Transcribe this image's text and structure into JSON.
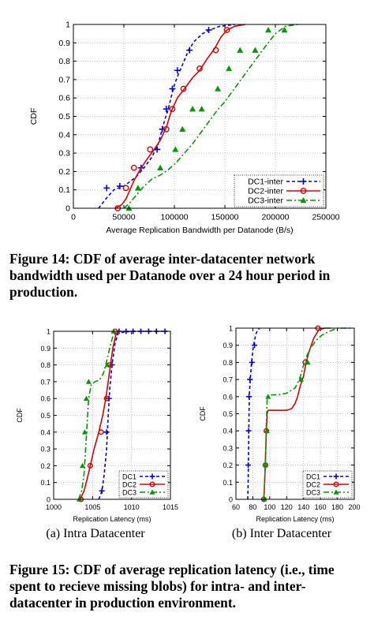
{
  "captions": {
    "fig14": "Figure 14: CDF of average inter-datacenter network bandwidth used per Datanode over a 24 hour period in production.",
    "fig15a": "(a) Intra Datacenter",
    "fig15b": "(b) Inter Datacenter",
    "fig15": "Figure 15: CDF of average replication latency (i.e., time spent to recieve missing blobs) for intra- and inter-datacenter in production environment."
  },
  "chart_data": [
    {
      "id": "fig14",
      "type": "line",
      "title": "",
      "xlabel": "Average Replication Bandwidth per Datanode (B/s)",
      "ylabel": "CDF",
      "xlim": [
        0,
        250000
      ],
      "ylim": [
        0,
        1
      ],
      "xticks": [
        0,
        50000,
        100000,
        150000,
        200000,
        250000
      ],
      "xtick_labels": [
        "0",
        "50000",
        "100000",
        "150000",
        "200000",
        "250000"
      ],
      "yticks": [
        0,
        0.1,
        0.2,
        0.3,
        0.4,
        0.5,
        0.6,
        0.7,
        0.8,
        0.9,
        1
      ],
      "ytick_labels": [
        "0",
        "0.1",
        "0.2",
        "0.3",
        "0.4",
        "0.5",
        "0.6",
        "0.7",
        "0.8",
        "0.9",
        "1"
      ],
      "grid": true,
      "legend": "bottom-right",
      "series": [
        {
          "name": "DC1-inter",
          "color": "#0000ee",
          "dash": "4,3",
          "marker": "plus",
          "x": [
            25000,
            32000,
            40000,
            50000,
            62000,
            70000,
            78000,
            84000,
            88000,
            91000,
            94000,
            97000,
            100000,
            104000,
            108000,
            114000,
            120000,
            128000,
            135000,
            145000,
            160000
          ],
          "y": [
            0,
            0.05,
            0.1,
            0.12,
            0.17,
            0.22,
            0.28,
            0.35,
            0.43,
            0.49,
            0.54,
            0.61,
            0.67,
            0.73,
            0.78,
            0.86,
            0.91,
            0.95,
            0.97,
            0.99,
            1
          ],
          "markers_x": [
            33000,
            46000,
            67000,
            83000,
            88000,
            92000,
            98000,
            103000,
            115000,
            134000
          ],
          "markers_y": [
            0.11,
            0.12,
            0.22,
            0.32,
            0.43,
            0.54,
            0.65,
            0.75,
            0.86,
            0.97
          ]
        },
        {
          "name": "DC2-inter",
          "color": "#dd0000",
          "dash": "",
          "marker": "circle",
          "x": [
            42000,
            48000,
            52000,
            56000,
            60000,
            66000,
            72000,
            80000,
            86000,
            92000,
            97000,
            103000,
            110000,
            118000,
            125000,
            132000,
            140000,
            146000,
            152000,
            160000,
            170000
          ],
          "y": [
            0,
            0.02,
            0.05,
            0.1,
            0.15,
            0.21,
            0.26,
            0.32,
            0.37,
            0.44,
            0.53,
            0.6,
            0.65,
            0.71,
            0.75,
            0.81,
            0.87,
            0.93,
            0.97,
            0.99,
            1
          ],
          "markers_x": [
            44000,
            52000,
            60000,
            76000,
            92000,
            98000,
            109000,
            125000,
            141000,
            152000
          ],
          "markers_y": [
            0,
            0.11,
            0.22,
            0.32,
            0.43,
            0.54,
            0.65,
            0.76,
            0.86,
            0.97
          ]
        },
        {
          "name": "DC3-inter",
          "color": "#009900",
          "dash": "7,3,2,3",
          "marker": "triangle",
          "x": [
            50000,
            56000,
            62000,
            70000,
            78000,
            86000,
            94000,
            102000,
            110000,
            118000,
            126000,
            134000,
            142000,
            150000,
            158000,
            166000,
            174000,
            182000,
            190000,
            200000,
            210000,
            222000
          ],
          "y": [
            0,
            0.03,
            0.07,
            0.12,
            0.16,
            0.18,
            0.21,
            0.25,
            0.3,
            0.35,
            0.41,
            0.47,
            0.53,
            0.58,
            0.64,
            0.7,
            0.76,
            0.82,
            0.88,
            0.95,
            0.99,
            1
          ],
          "markers_x": [
            55000,
            64000,
            86000,
            101000,
            108000,
            118000,
            127000,
            143000,
            154000,
            165000,
            180000,
            193000,
            209000
          ],
          "markers_y": [
            0,
            0.11,
            0.22,
            0.32,
            0.43,
            0.54,
            0.54,
            0.65,
            0.76,
            0.86,
            0.86,
            0.97,
            0.97
          ]
        }
      ]
    },
    {
      "id": "fig15a",
      "type": "line",
      "title": "",
      "xlabel": "Replication Latency (ms)",
      "ylabel": "CDF",
      "xlim": [
        1000,
        1015
      ],
      "ylim": [
        0,
        1
      ],
      "xticks": [
        1000,
        1005,
        1010,
        1015
      ],
      "xtick_labels": [
        "1000",
        "1005",
        "1010",
        "1015"
      ],
      "yticks": [
        0,
        0.1,
        0.2,
        0.3,
        0.4,
        0.5,
        0.6,
        0.7,
        0.8,
        0.9,
        1
      ],
      "ytick_labels": [
        "0",
        "0.1",
        "0.2",
        "0.3",
        "0.4",
        "0.5",
        "0.6",
        "0.7",
        "0.8",
        "0.9",
        "1"
      ],
      "grid": true,
      "legend": "bottom-right",
      "series": [
        {
          "name": "DC1",
          "color": "#0000ee",
          "dash": "4,3",
          "marker": "plus",
          "x": [
            1005.8,
            1006.2,
            1006.5,
            1006.8,
            1007.0,
            1007.2,
            1007.5,
            1007.9,
            1008.3,
            1010,
            1012,
            1014.5
          ],
          "y": [
            0,
            0.05,
            0.15,
            0.3,
            0.5,
            0.65,
            0.8,
            0.93,
            0.99,
            1,
            1,
            1
          ],
          "markers_x": [
            1006.2,
            1006.8,
            1007.1,
            1007.5,
            1008.4,
            1009.3,
            1010.2,
            1011.2,
            1012.2,
            1013.2,
            1014.3
          ],
          "markers_y": [
            0.05,
            0.4,
            0.6,
            0.8,
            1,
            1,
            1,
            1,
            1,
            1,
            1
          ]
        },
        {
          "name": "DC2",
          "color": "#dd0000",
          "dash": "",
          "marker": "circle",
          "x": [
            1003.4,
            1003.9,
            1004.3,
            1004.7,
            1005.2,
            1005.8,
            1006.3,
            1006.7,
            1007.0,
            1007.3,
            1007.6,
            1008.0,
            1008.5
          ],
          "y": [
            0,
            0.05,
            0.12,
            0.2,
            0.3,
            0.4,
            0.5,
            0.6,
            0.7,
            0.8,
            0.9,
            0.98,
            1
          ],
          "markers_x": [
            1003.5,
            1004.7,
            1006.1,
            1006.8,
            1007.2,
            1007.9
          ],
          "markers_y": [
            0,
            0.2,
            0.4,
            0.6,
            0.8,
            1
          ]
        },
        {
          "name": "DC3",
          "color": "#009900",
          "dash": "7,3,2,3",
          "marker": "triangle",
          "x": [
            1003.2,
            1003.6,
            1003.9,
            1004.1,
            1004.3,
            1004.5,
            1004.8,
            1005.3,
            1005.9,
            1006.4,
            1006.8,
            1007.2,
            1007.6,
            1008.2
          ],
          "y": [
            0,
            0.05,
            0.15,
            0.3,
            0.45,
            0.6,
            0.68,
            0.7,
            0.71,
            0.75,
            0.82,
            0.9,
            0.97,
            1
          ],
          "markers_x": [
            1003.3,
            1003.7,
            1004.0,
            1004.2,
            1004.5,
            1006.9,
            1007.7
          ],
          "markers_y": [
            0,
            0.2,
            0.4,
            0.6,
            0.7,
            0.8,
            1
          ]
        }
      ]
    },
    {
      "id": "fig15b",
      "type": "line",
      "title": "",
      "xlabel": "Replication Latency (ms)",
      "ylabel": "CDF",
      "xlim": [
        60,
        200
      ],
      "ylim": [
        0,
        1
      ],
      "xticks": [
        60,
        80,
        100,
        120,
        140,
        160,
        180,
        200
      ],
      "xtick_labels": [
        "60",
        "80",
        "100",
        "120",
        "140",
        "160",
        "180",
        "200"
      ],
      "yticks": [
        0,
        0.1,
        0.2,
        0.3,
        0.4,
        0.5,
        0.6,
        0.7,
        0.8,
        0.9,
        1
      ],
      "ytick_labels": [
        "0",
        "0.1",
        "0.2",
        "0.3",
        "0.4",
        "0.5",
        "0.6",
        "0.7",
        "0.8",
        "0.9",
        "1"
      ],
      "grid": true,
      "legend": "bottom-right",
      "series": [
        {
          "name": "DC1",
          "color": "#0000ee",
          "dash": "4,3",
          "marker": "plus",
          "x": [
            74,
            74.5,
            75,
            75.5,
            76,
            77,
            78.5,
            80,
            82,
            84,
            86,
            88
          ],
          "y": [
            0,
            0.1,
            0.3,
            0.5,
            0.62,
            0.7,
            0.8,
            0.87,
            0.93,
            0.97,
            0.99,
            1
          ],
          "markers_x": [
            74.5,
            75,
            75.5,
            76.5,
            79,
            82
          ],
          "markers_y": [
            0.2,
            0.4,
            0.6,
            0.7,
            0.8,
            0.9
          ]
        },
        {
          "name": "DC2",
          "color": "#dd0000",
          "dash": "",
          "marker": "circle",
          "x": [
            93,
            94,
            95,
            96,
            97,
            98,
            100,
            110,
            120,
            126,
            130,
            133,
            136,
            140,
            143,
            147,
            152,
            158,
            165,
            172
          ],
          "y": [
            0,
            0.1,
            0.25,
            0.4,
            0.5,
            0.52,
            0.52,
            0.52,
            0.52,
            0.53,
            0.56,
            0.6,
            0.66,
            0.72,
            0.8,
            0.87,
            0.94,
            0.99,
            1,
            1
          ],
          "markers_x": [
            93,
            95,
            96,
            142,
            157
          ],
          "markers_y": [
            0,
            0.2,
            0.4,
            0.8,
            1
          ]
        },
        {
          "name": "DC3",
          "color": "#009900",
          "dash": "7,3,2,3",
          "marker": "triangle",
          "x": [
            93,
            94,
            95,
            96,
            97,
            98,
            100,
            110,
            120,
            130,
            135,
            138,
            142,
            148,
            155,
            162,
            170,
            180,
            190,
            198
          ],
          "y": [
            0,
            0.1,
            0.25,
            0.45,
            0.58,
            0.6,
            0.61,
            0.61,
            0.62,
            0.65,
            0.7,
            0.75,
            0.82,
            0.88,
            0.93,
            0.96,
            0.98,
            1,
            1,
            1
          ],
          "markers_x": [
            93.5,
            95,
            96.5,
            98,
            137,
            145
          ],
          "markers_y": [
            0,
            0.2,
            0.4,
            0.6,
            0.7,
            0.8
          ]
        }
      ]
    }
  ]
}
